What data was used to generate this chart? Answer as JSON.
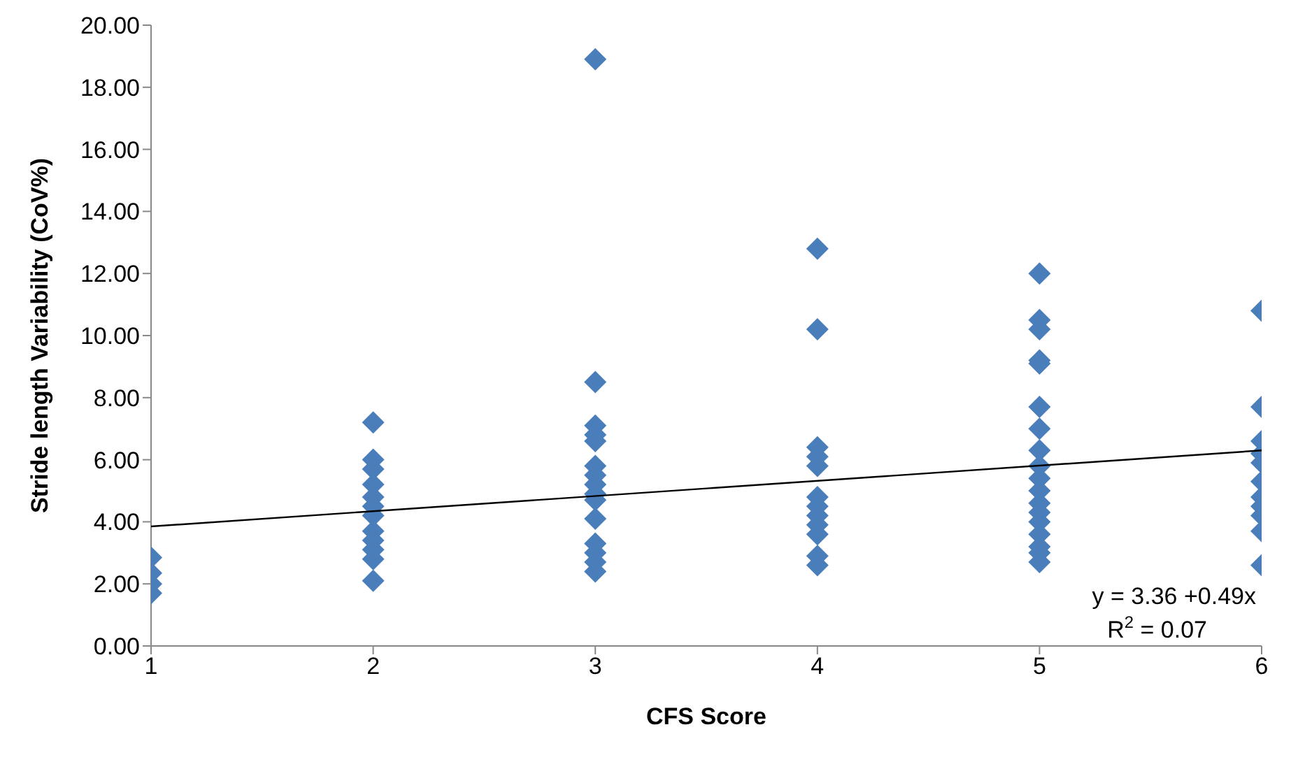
{
  "chart_data": {
    "type": "scatter",
    "xlabel": "CFS Score",
    "ylabel": "Stride length Variability (CoV%)",
    "xlim": [
      1,
      6
    ],
    "xticks": [
      1,
      2,
      3,
      4,
      5,
      6
    ],
    "ylim": [
      0,
      20
    ],
    "yticks": [
      {
        "value": 0,
        "label": "0.00"
      },
      {
        "value": 2,
        "label": "2.00"
      },
      {
        "value": 4,
        "label": "4.00"
      },
      {
        "value": 6,
        "label": "6.00"
      },
      {
        "value": 8,
        "label": "8.00"
      },
      {
        "value": 10,
        "label": "10.00"
      },
      {
        "value": 12,
        "label": "12.00"
      },
      {
        "value": 14,
        "label": "14.00"
      },
      {
        "value": 16,
        "label": "16.00"
      },
      {
        "value": 18,
        "label": "18.00"
      },
      {
        "value": 20,
        "label": "20.00"
      }
    ],
    "grid": false,
    "legend": false,
    "marker": "diamond",
    "series": [
      {
        "color": "#4a7ebb",
        "x": [
          1,
          1,
          1,
          1,
          2,
          2,
          2,
          2,
          2,
          2,
          2,
          2,
          2,
          2,
          2,
          2,
          3,
          3,
          3,
          3,
          3,
          3,
          3,
          3,
          3,
          3,
          3,
          3,
          3,
          3,
          3,
          4,
          4,
          4,
          4,
          4,
          4,
          4,
          4,
          4,
          4,
          4,
          4,
          5,
          5,
          5,
          5,
          5,
          5,
          5,
          5,
          5,
          5,
          5,
          5,
          5,
          5,
          5,
          5,
          5,
          5,
          6,
          6,
          6,
          6,
          6,
          6,
          6,
          6,
          6,
          6,
          6
        ],
        "values": [
          2.85,
          2.35,
          2.0,
          1.7,
          7.2,
          6.0,
          5.7,
          5.2,
          4.8,
          4.5,
          4.2,
          3.7,
          3.4,
          3.1,
          2.8,
          2.1,
          18.9,
          8.5,
          7.1,
          6.8,
          6.6,
          5.8,
          5.5,
          5.2,
          4.9,
          4.7,
          4.1,
          3.3,
          3.0,
          2.7,
          2.4,
          12.8,
          10.2,
          6.4,
          6.1,
          5.8,
          4.8,
          4.5,
          4.2,
          3.9,
          3.6,
          2.9,
          2.6,
          12.0,
          10.5,
          10.2,
          9.2,
          9.1,
          7.7,
          7.0,
          6.3,
          5.8,
          5.4,
          5.0,
          4.6,
          4.3,
          4.0,
          3.6,
          3.2,
          3.0,
          2.7,
          10.8,
          7.7,
          6.6,
          6.2,
          5.9,
          5.3,
          4.8,
          4.5,
          4.2,
          3.7,
          2.6
        ]
      },
      {
        "type": "line",
        "color": "#000000",
        "x": [
          1,
          6
        ],
        "values": [
          3.85,
          6.3
        ],
        "marker": "none",
        "line_style": "solid"
      }
    ],
    "annotations": [
      "y = 3.36 +0.49x",
      "R$^{2}$ = 0.07"
    ]
  }
}
